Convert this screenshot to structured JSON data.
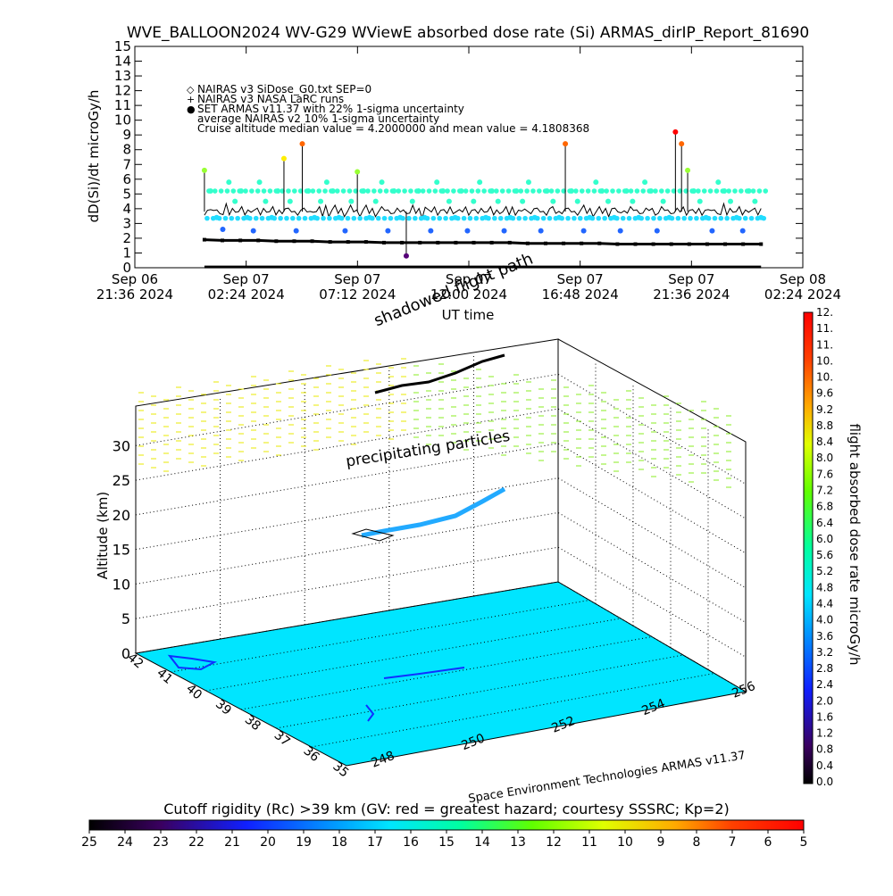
{
  "title": "WVE_BALLOON2024 WV-G29 WViewE absorbed dose rate (Si) ARMAS_dirIP_Report_81690",
  "chart_data": [
    {
      "type": "scatter",
      "ylabel": "dD(Si)/dt microGy/h",
      "xlabel": "UT time",
      "ylim": [
        0,
        15
      ],
      "yticks": [
        "0",
        "1",
        "2",
        "3",
        "4",
        "5",
        "6",
        "7",
        "8",
        "9",
        "10",
        "11",
        "12",
        "13",
        "14",
        "15"
      ],
      "xticks": [
        {
          "line1": "Sep 06",
          "line2": "21:36 2024"
        },
        {
          "line1": "Sep 07",
          "line2": "02:24 2024"
        },
        {
          "line1": "Sep 07",
          "line2": "07:12 2024"
        },
        {
          "line1": "Sep 07",
          "line2": "12:00 2024"
        },
        {
          "line1": "Sep 07",
          "line2": "16:48 2024"
        },
        {
          "line1": "Sep 07",
          "line2": "21:36 2024"
        },
        {
          "line1": "Sep 08",
          "line2": "02:24 2024"
        }
      ],
      "legend": [
        {
          "symbol": "◇",
          "text": "NAIRAS v3 SiDose_G0.txt SEP=0"
        },
        {
          "symbol": "+",
          "text": "NAIRAS v3 NASA LaRC runs"
        },
        {
          "symbol": "●",
          "text": "SET ARMAS v11.37 with 22% 1-sigma uncertainty"
        },
        {
          "symbol": "",
          "text": "average NAIRAS v2 10% 1-sigma uncertainty"
        },
        {
          "symbol": "",
          "text": "Cruise altitude median value = 4.2000000 and mean value = 4.1808368"
        }
      ],
      "legend_placement": "top-left",
      "series": [
        {
          "values": [
            1.9,
            1.85,
            1.85,
            1.85,
            1.8,
            1.8,
            1.8,
            1.75,
            1.75,
            1.75,
            1.7,
            1.7,
            1.7,
            1.7,
            1.7,
            1.7,
            1.7,
            1.7,
            1.65,
            1.65,
            1.65,
            1.65,
            1.65,
            1.6,
            1.6,
            1.6,
            1.6,
            1.6,
            1.6,
            1.6,
            1.6,
            1.6
          ]
        },
        {
          "values": [
            3.8,
            3.9,
            3.7,
            4.0,
            3.8,
            3.9,
            3.6,
            4.1,
            3.7,
            3.9,
            4.0,
            3.8,
            3.9,
            3.7,
            3.8,
            4.0,
            3.9,
            3.8,
            3.7,
            3.9,
            4.0,
            3.8,
            3.9,
            3.7,
            3.8,
            3.9,
            4.0,
            3.8,
            3.9,
            3.7,
            3.8,
            3.9
          ]
        },
        {
          "values": [
            6.6,
            5.2,
            3.4,
            2.6,
            5.8,
            4.5,
            5.2,
            3.4,
            2.5,
            5.8,
            4.5,
            3.4,
            5.2,
            7.4,
            4.5,
            2.5,
            8.4,
            5.2,
            3.4,
            4.5,
            5.8,
            5.2,
            3.4,
            2.5,
            4.5,
            6.5,
            5.2,
            3.4,
            4.5,
            5.8,
            2.5,
            5.2,
            3.4,
            0.8,
            4.5,
            5.2,
            3.4,
            2.5,
            5.8,
            5.2,
            4.5,
            3.4,
            5.2,
            2.5,
            4.5,
            5.8,
            3.4,
            5.2,
            4.5,
            2.5,
            3.4,
            5.2,
            4.5,
            5.8,
            3.4,
            2.5,
            5.2,
            4.5,
            3.4,
            8.4,
            5.2,
            4.5,
            2.5,
            3.4,
            5.8,
            5.2,
            4.5,
            3.4,
            2.5,
            5.2,
            4.5,
            3.4,
            5.8,
            5.2,
            2.5,
            4.5,
            3.4,
            9.2,
            8.4,
            6.6,
            5.2,
            4.5,
            3.4,
            2.5,
            5.8,
            5.2,
            4.5,
            3.4,
            2.5,
            5.2,
            4.5,
            3.4
          ]
        }
      ],
      "x_range": [
        0,
        28.8
      ],
      "x_data_hours_from_first_tick": {
        "diamond_line": [
          3.0,
          27.0
        ],
        "plus_line": [
          3.0,
          27.0
        ],
        "dots": [
          3.0,
          27.0
        ]
      }
    },
    {
      "type": "3d-scatter",
      "ylabel": "Altitude (km)",
      "zticks": [
        "0",
        "5",
        "10",
        "15",
        "20",
        "25",
        "30"
      ],
      "lat_ticks": [
        "42",
        "41",
        "40",
        "39",
        "38",
        "37",
        "36",
        "35"
      ],
      "lon_ticks": [
        "248",
        "250",
        "252",
        "254",
        "256"
      ],
      "annotations": [
        "shadowed flight path",
        "precipitating particles"
      ],
      "credit": "Space Environment Technologies ARMAS v11.37"
    },
    {
      "type": "colorbar",
      "title": "flight absorbed dose rate microGy/h",
      "ticks": [
        "0.0",
        "0.4",
        "0.8",
        "1.2",
        "1.6",
        "2.0",
        "2.4",
        "2.8",
        "3.2",
        "3.6",
        "4.0",
        "4.4",
        "4.8",
        "5.2",
        "5.6",
        "6.0",
        "6.4",
        "6.8",
        "7.2",
        "7.6",
        "8.0",
        "8.4",
        "8.8",
        "9.2",
        "9.6",
        "10.",
        "10.",
        "11.",
        "11.",
        "12."
      ]
    },
    {
      "type": "colorbar",
      "title": "Cutoff rigidity (Rc) >39 km (GV: red = greatest hazard; courtesy SSSRC; Kp=2)",
      "ticks": [
        "25",
        "24",
        "23",
        "22",
        "21",
        "20",
        "19",
        "18",
        "17",
        "16",
        "15",
        "14",
        "13",
        "12",
        "11",
        "10",
        "9",
        "8",
        "7",
        "6",
        "5"
      ]
    }
  ],
  "colors": {
    "cyan_floor": "#00e5ff",
    "light_green": "#7fff66",
    "aqua": "#33ffcc",
    "blue_dot": "#2266ff",
    "yellow_dot": "#ffee00",
    "orange_dot": "#ff6600",
    "red_dot": "#ff0000",
    "purple_dot": "#550077"
  }
}
